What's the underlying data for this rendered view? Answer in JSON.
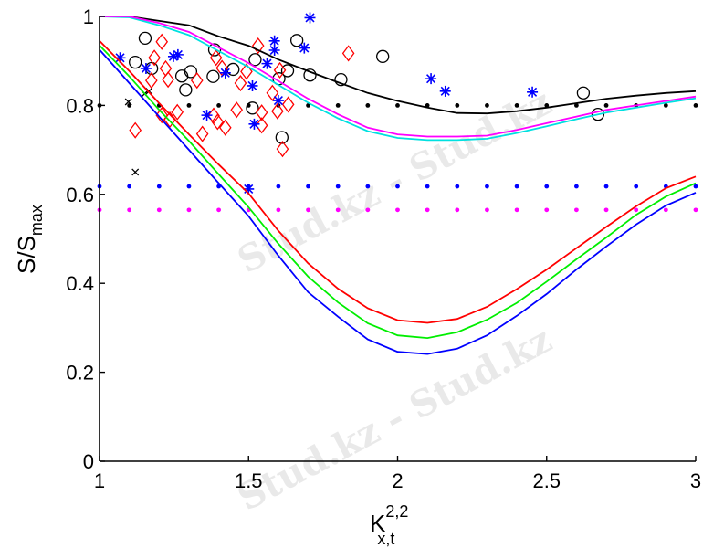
{
  "watermark": "Stud.kz - Stud.kz",
  "chart_data": {
    "type": "line",
    "title": "",
    "xlabel": "K",
    "xlabel_superscript": "2,2",
    "xlabel_subscript": "x,t",
    "ylabel": "S/S",
    "ylabel_subscript": "max",
    "xlim": [
      1,
      3
    ],
    "ylim": [
      0,
      1
    ],
    "xticks": [
      "1",
      "1.5",
      "2",
      "2.5",
      "3"
    ],
    "xtick_values": [
      1,
      1.5,
      2,
      2.5,
      3
    ],
    "yticks": [
      "0",
      "0.2",
      "0.4",
      "0.6",
      "0.8",
      "1"
    ],
    "ytick_values": [
      0,
      0.2,
      0.4,
      0.6,
      0.8,
      1
    ],
    "grid": false,
    "x": [
      1.0,
      1.1,
      1.2,
      1.3,
      1.4,
      1.5,
      1.6,
      1.7,
      1.8,
      1.9,
      2.0,
      2.1,
      2.2,
      2.3,
      2.4,
      2.5,
      2.6,
      2.7,
      2.8,
      2.9,
      3.0
    ],
    "series": [
      {
        "name": "black-curve",
        "color": "#000000",
        "style": "line",
        "values": [
          1.0,
          1.0,
          0.99,
          0.98,
          0.955,
          0.934,
          0.903,
          0.877,
          0.852,
          0.828,
          0.81,
          0.795,
          0.783,
          0.782,
          0.787,
          0.795,
          0.805,
          0.815,
          0.822,
          0.828,
          0.832
        ]
      },
      {
        "name": "cyan-curve",
        "color": "#00e0e0",
        "style": "line",
        "values": [
          1.0,
          0.998,
          0.98,
          0.958,
          0.922,
          0.886,
          0.846,
          0.806,
          0.771,
          0.742,
          0.727,
          0.722,
          0.722,
          0.725,
          0.738,
          0.753,
          0.769,
          0.784,
          0.795,
          0.806,
          0.816
        ]
      },
      {
        "name": "magenta-curve",
        "color": "#ff00ff",
        "style": "line",
        "values": [
          1.0,
          1.0,
          0.985,
          0.965,
          0.93,
          0.895,
          0.855,
          0.815,
          0.78,
          0.75,
          0.735,
          0.73,
          0.73,
          0.732,
          0.745,
          0.76,
          0.775,
          0.79,
          0.8,
          0.81,
          0.82
        ]
      },
      {
        "name": "red-curve",
        "color": "#ff0000",
        "style": "line",
        "values": [
          0.945,
          0.877,
          0.805,
          0.735,
          0.667,
          0.602,
          0.518,
          0.445,
          0.388,
          0.344,
          0.317,
          0.311,
          0.32,
          0.347,
          0.387,
          0.431,
          0.479,
          0.527,
          0.573,
          0.614,
          0.64
        ]
      },
      {
        "name": "green-curve",
        "color": "#00ee00",
        "style": "line",
        "values": [
          0.935,
          0.865,
          0.79,
          0.72,
          0.645,
          0.571,
          0.489,
          0.415,
          0.357,
          0.31,
          0.283,
          0.277,
          0.29,
          0.318,
          0.356,
          0.404,
          0.454,
          0.503,
          0.554,
          0.595,
          0.625
        ]
      },
      {
        "name": "blue-curve",
        "color": "#0000ff",
        "style": "line",
        "values": [
          0.925,
          0.85,
          0.775,
          0.7,
          0.625,
          0.551,
          0.462,
          0.38,
          0.325,
          0.274,
          0.246,
          0.241,
          0.253,
          0.283,
          0.327,
          0.376,
          0.431,
          0.483,
          0.532,
          0.575,
          0.604
        ]
      },
      {
        "name": "black-dotted",
        "color": "#000000",
        "style": "dots",
        "values": [
          0.8,
          0.8,
          0.8,
          0.8,
          0.8,
          0.8,
          0.8,
          0.8,
          0.8,
          0.8,
          0.8,
          0.8,
          0.8,
          0.8,
          0.8,
          0.8,
          0.8,
          0.8,
          0.8,
          0.8,
          0.8
        ]
      },
      {
        "name": "blue-dotted",
        "color": "#0000ff",
        "style": "dots",
        "values": [
          0.618,
          0.618,
          0.618,
          0.618,
          0.618,
          0.618,
          0.618,
          0.618,
          0.618,
          0.618,
          0.618,
          0.618,
          0.618,
          0.618,
          0.618,
          0.618,
          0.618,
          0.618,
          0.618,
          0.618,
          0.618
        ]
      },
      {
        "name": "magenta-dotted",
        "color": "#ff00ff",
        "style": "dots",
        "values": [
          0.565,
          0.565,
          0.565,
          0.565,
          0.565,
          0.565,
          0.565,
          0.565,
          0.565,
          0.565,
          0.565,
          0.565,
          0.565,
          0.565,
          0.565,
          0.565,
          0.565,
          0.565,
          0.565,
          0.565,
          0.565
        ]
      }
    ],
    "scatter": [
      {
        "name": "black-circles",
        "color": "#000000",
        "marker": "circle",
        "points": [
          [
            1.153,
            0.951
          ],
          [
            1.12,
            0.897
          ],
          [
            1.175,
            0.883
          ],
          [
            1.276,
            0.866
          ],
          [
            1.306,
            0.876
          ],
          [
            1.289,
            0.835
          ],
          [
            1.386,
            0.925
          ],
          [
            1.381,
            0.865
          ],
          [
            1.448,
            0.881
          ],
          [
            1.522,
            0.903
          ],
          [
            1.513,
            0.794
          ],
          [
            1.602,
            0.86
          ],
          [
            1.631,
            0.878
          ],
          [
            1.612,
            0.728
          ],
          [
            1.662,
            0.946
          ],
          [
            1.706,
            0.868
          ],
          [
            1.81,
            0.858
          ],
          [
            1.95,
            0.91
          ],
          [
            2.623,
            0.828
          ],
          [
            2.672,
            0.78
          ]
        ]
      },
      {
        "name": "red-diamonds",
        "color": "#ff0000",
        "marker": "diamond",
        "points": [
          [
            1.209,
            0.943
          ],
          [
            1.184,
            0.907
          ],
          [
            1.174,
            0.856
          ],
          [
            1.222,
            0.883
          ],
          [
            1.23,
            0.858
          ],
          [
            1.261,
            0.785
          ],
          [
            1.209,
            0.778
          ],
          [
            1.236,
            0.768
          ],
          [
            1.12,
            0.744
          ],
          [
            1.327,
            0.856
          ],
          [
            1.345,
            0.736
          ],
          [
            1.391,
            0.907
          ],
          [
            1.411,
            0.884
          ],
          [
            1.383,
            0.777
          ],
          [
            1.396,
            0.763
          ],
          [
            1.422,
            0.75
          ],
          [
            1.46,
            0.79
          ],
          [
            1.473,
            0.85
          ],
          [
            1.493,
            0.876
          ],
          [
            1.532,
            0.934
          ],
          [
            1.58,
            0.828
          ],
          [
            1.597,
            0.787
          ],
          [
            1.544,
            0.784
          ],
          [
            1.544,
            0.755
          ],
          [
            1.605,
            0.879
          ],
          [
            1.633,
            0.802
          ],
          [
            1.614,
            0.702
          ],
          [
            1.835,
            0.917
          ]
        ]
      },
      {
        "name": "blue-asterisks",
        "color": "#0000ff",
        "marker": "asterisk",
        "points": [
          [
            1.069,
            0.907
          ],
          [
            1.156,
            0.883
          ],
          [
            1.248,
            0.91
          ],
          [
            1.263,
            0.914
          ],
          [
            1.422,
            0.873
          ],
          [
            1.36,
            0.778
          ],
          [
            1.513,
            0.844
          ],
          [
            1.519,
            0.758
          ],
          [
            1.562,
            0.894
          ],
          [
            1.587,
            0.945
          ],
          [
            1.587,
            0.924
          ],
          [
            1.6,
            0.811
          ],
          [
            1.687,
            0.929
          ],
          [
            1.706,
            0.997
          ],
          [
            1.5,
            0.612
          ],
          [
            2.112,
            0.86
          ],
          [
            2.16,
            0.832
          ],
          [
            2.452,
            0.83
          ]
        ]
      },
      {
        "name": "black-crosses",
        "color": "#000000",
        "marker": "x",
        "points": [
          [
            1.097,
            0.808
          ],
          [
            1.151,
            0.826
          ],
          [
            1.166,
            0.832
          ],
          [
            1.12,
            0.65
          ]
        ]
      }
    ]
  }
}
